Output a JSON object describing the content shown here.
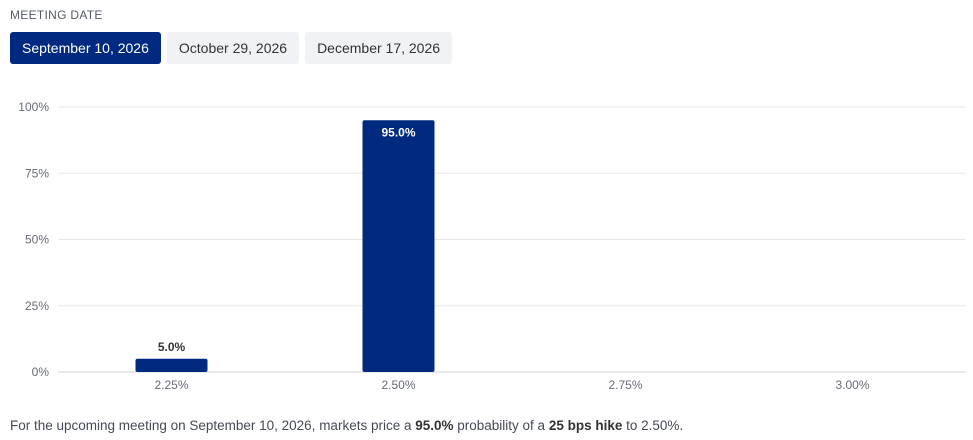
{
  "header": {
    "section_label": "MEETING DATE"
  },
  "tabs": [
    {
      "label": "September 10, 2026",
      "active": true
    },
    {
      "label": "October 29, 2026",
      "active": false
    },
    {
      "label": "December 17, 2026",
      "active": false
    }
  ],
  "colors": {
    "accent": "#002a7f",
    "grid": "#e6e8eb",
    "tab_inactive_bg": "#f0f2f5"
  },
  "chart_data": {
    "type": "bar",
    "categories": [
      "2.25%",
      "2.50%",
      "2.75%",
      "3.00%"
    ],
    "values": [
      5.0,
      95.0,
      0,
      0
    ],
    "value_labels": [
      "5.0%",
      "95.0%",
      "",
      ""
    ],
    "ylim": [
      0,
      100
    ],
    "yticks": [
      0,
      25,
      50,
      75,
      100
    ],
    "ytick_labels": [
      "0%",
      "25%",
      "50%",
      "75%",
      "100%"
    ],
    "grid": true,
    "title": "",
    "xlabel": "",
    "ylabel": ""
  },
  "summary": {
    "prefix": "For the upcoming meeting on September 10, 2026, markets price a ",
    "probability": "95.0%",
    "middle": " probability of a ",
    "move": "25 bps hike",
    "suffix": " to 2.50%."
  }
}
